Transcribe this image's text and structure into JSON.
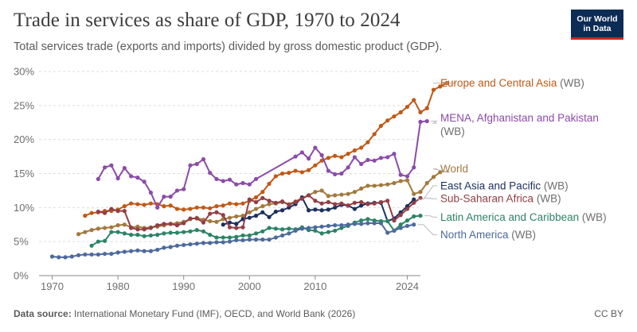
{
  "header": {
    "title": "Trade in services as share of GDP, 1970 to 2024",
    "subtitle": "Total services trade (exports and imports) divided by gross domestic product (GDP).",
    "logo_line1": "Our World",
    "logo_line2": "in Data"
  },
  "footer": {
    "source_label": "Data source:",
    "source_text": "International Monetary Fund (IMF), OECD, and World Bank (2026)",
    "license": "CC BY"
  },
  "colors": {
    "grid": "#dddddd",
    "axis": "#8a8a8a",
    "suffix": "#6e6e6e"
  },
  "chart_data": {
    "type": "line",
    "title": "Trade in services as share of GDP, 1970 to 2024",
    "xlabel": "",
    "ylabel": "",
    "xlim": [
      1968,
      2026
    ],
    "ylim": [
      0,
      30
    ],
    "x_ticks": [
      {
        "value": 1970,
        "label": "1970"
      },
      {
        "value": 1980,
        "label": "1980"
      },
      {
        "value": 1990,
        "label": "1990"
      },
      {
        "value": 2000,
        "label": "2000"
      },
      {
        "value": 2010,
        "label": "2010"
      },
      {
        "value": 2024,
        "label": "2024"
      }
    ],
    "y_ticks": [
      {
        "value": 0,
        "label": "0%"
      },
      {
        "value": 5,
        "label": "5%"
      },
      {
        "value": 10,
        "label": "10%"
      },
      {
        "value": 15,
        "label": "15%"
      },
      {
        "value": 20,
        "label": "20%"
      },
      {
        "value": 25,
        "label": "25%"
      },
      {
        "value": 30,
        "label": "30%"
      }
    ],
    "grid": true,
    "series": [
      {
        "name": "Europe and Central Asia",
        "suffix": "(WB)",
        "slug": "europe-central-asia",
        "color": "#c05917",
        "start": 1975,
        "values": [
          8.8,
          9.2,
          9.3,
          9.5,
          9.5,
          9.7,
          10.2,
          10.6,
          10.5,
          10.4,
          10.6,
          10.5,
          10.2,
          10.3,
          9.8,
          9.7,
          9.8,
          10.0,
          10.0,
          9.9,
          10.2,
          10.3,
          10.6,
          10.5,
          10.6,
          11.0,
          11.5,
          12.3,
          13.5,
          14.6,
          15.0,
          15.1,
          15.4,
          15.2,
          15.5,
          16.2,
          16.9,
          17.3,
          17.6,
          17.4,
          17.9,
          18.4,
          18.8,
          19.6,
          20.8,
          22.0,
          22.8,
          23.4,
          24.0,
          24.8,
          25.8,
          24.0,
          24.6,
          27.3,
          27.8,
          28.3
        ]
      },
      {
        "name": "MENA, Afghanistan and Pakistan",
        "suffix": "(WB)",
        "slug": "mena",
        "color": "#8c4ba8",
        "start": 1977,
        "values": [
          14.2,
          15.9,
          16.2,
          14.3,
          15.8,
          14.6,
          14.4,
          13.8,
          12.2,
          10.0,
          11.6,
          11.6,
          12.5,
          12.7,
          16.2,
          16.4,
          17.1,
          15.1,
          14.2,
          13.9,
          14.1,
          13.4,
          13.6,
          13.4,
          14.2,
          null,
          null,
          null,
          null,
          null,
          17.5,
          18.1,
          17.2,
          18.8,
          17.7,
          15.4,
          14.9,
          15.0,
          15.9,
          17.4,
          16.4,
          17.0,
          16.9,
          17.3,
          17.4,
          17.9,
          14.8,
          14.6,
          15.9,
          22.6,
          22.7
        ]
      },
      {
        "name": "World",
        "suffix": "",
        "slug": "world",
        "color": "#a2793e",
        "start": 1974,
        "values": [
          6.1,
          6.4,
          6.7,
          6.9,
          7.0,
          7.1,
          7.4,
          7.5,
          7.1,
          7.2,
          7.0,
          7.1,
          7.2,
          7.4,
          7.6,
          7.7,
          7.9,
          8.3,
          8.5,
          8.2,
          8.0,
          7.9,
          8.3,
          8.5,
          8.7,
          8.8,
          9.3,
          9.8,
          10.2,
          10.5,
          10.6,
          10.8,
          10.5,
          10.9,
          11.4,
          11.8,
          12.3,
          12.5,
          11.7,
          11.8,
          11.9,
          12.0,
          12.3,
          12.8,
          13.2,
          13.2,
          13.3,
          13.4,
          13.6,
          13.9,
          14.0,
          12.0,
          12.3,
          13.6,
          14.5,
          15.2
        ]
      },
      {
        "name": "East Asia and Pacific",
        "suffix": "(WB)",
        "slug": "east-asia-pacific",
        "color": "#1b2f5e",
        "start": 1996,
        "values": [
          7.5,
          7.8,
          7.6,
          8.3,
          8.5,
          8.8,
          9.3,
          8.6,
          9.4,
          9.6,
          10.0,
          10.5,
          11.5,
          9.6,
          9.7,
          9.6,
          9.7,
          10.0,
          10.4,
          10.3,
          9.8,
          10.3,
          10.6,
          10.7,
          10.7,
          8.0,
          8.4,
          9.3,
          10.2,
          11.2
        ]
      },
      {
        "name": "Sub-Saharan Africa",
        "suffix": "(WB)",
        "slug": "sub-saharan-africa",
        "color": "#923e45",
        "start": 1977,
        "values": [
          9.4,
          9.2,
          9.8,
          9.5,
          9.5,
          7.0,
          6.8,
          6.8,
          7.0,
          7.4,
          7.6,
          7.6,
          7.4,
          7.7,
          8.4,
          8.4,
          7.8,
          9.1,
          9.3,
          8.9,
          7.1,
          7.0,
          7.1,
          11.2,
          10.8,
          11.4,
          11.0,
          10.7,
          10.9,
          10.4,
          10.8,
          11.3,
          11.8,
          11.0,
          10.6,
          10.8,
          10.5,
          10.6,
          10.3,
          10.7,
          10.8,
          10.5,
          10.6,
          10.8,
          11.0,
          8.1,
          8.9,
          9.8,
          10.7,
          11.4
        ]
      },
      {
        "name": "Latin America and Caribbean",
        "suffix": "(WB)",
        "slug": "latin-america-caribbean",
        "color": "#2c8465",
        "start": 1976,
        "values": [
          4.4,
          5.0,
          5.1,
          6.4,
          6.4,
          6.2,
          6.0,
          6.0,
          5.8,
          5.9,
          6.0,
          6.2,
          6.3,
          6.3,
          6.4,
          6.5,
          6.7,
          6.5,
          6.0,
          5.6,
          5.6,
          5.6,
          5.7,
          5.9,
          5.9,
          6.2,
          6.5,
          7.0,
          6.9,
          6.8,
          6.9,
          6.8,
          7.1,
          6.7,
          6.6,
          6.2,
          6.4,
          6.6,
          7.0,
          7.3,
          7.8,
          8.1,
          8.3,
          8.1,
          8.0,
          8.0,
          6.6,
          7.5,
          8.1,
          8.7,
          8.8
        ]
      },
      {
        "name": "North America",
        "suffix": "(WB)",
        "slug": "north-america",
        "color": "#4c6a9c",
        "start": 1970,
        "values": [
          2.8,
          2.7,
          2.7,
          2.8,
          3.0,
          3.1,
          3.1,
          3.1,
          3.2,
          3.2,
          3.4,
          3.5,
          3.6,
          3.7,
          3.6,
          3.6,
          3.8,
          4.1,
          4.2,
          4.4,
          4.5,
          4.6,
          4.7,
          4.8,
          4.8,
          4.9,
          4.9,
          5.0,
          5.2,
          5.2,
          5.3,
          5.3,
          5.3,
          5.3,
          5.6,
          5.9,
          6.2,
          6.6,
          6.9,
          7.0,
          7.1,
          7.2,
          7.3,
          7.4,
          7.4,
          7.5,
          7.6,
          7.6,
          7.7,
          7.7,
          7.7,
          6.3,
          6.6,
          7.0,
          7.3,
          7.5
        ]
      }
    ],
    "label_positions": [
      {
        "slug": "europe-central-asia",
        "label_y": 28.3
      },
      {
        "slug": "mena",
        "label_y": 22.4
      },
      {
        "slug": "world",
        "label_y": 15.7
      },
      {
        "slug": "east-asia-pacific",
        "label_y": 13.2
      },
      {
        "slug": "sub-saharan-africa",
        "label_y": 11.3
      },
      {
        "slug": "latin-america-caribbean",
        "label_y": 8.6
      },
      {
        "slug": "north-america",
        "label_y": 6.0
      }
    ]
  }
}
